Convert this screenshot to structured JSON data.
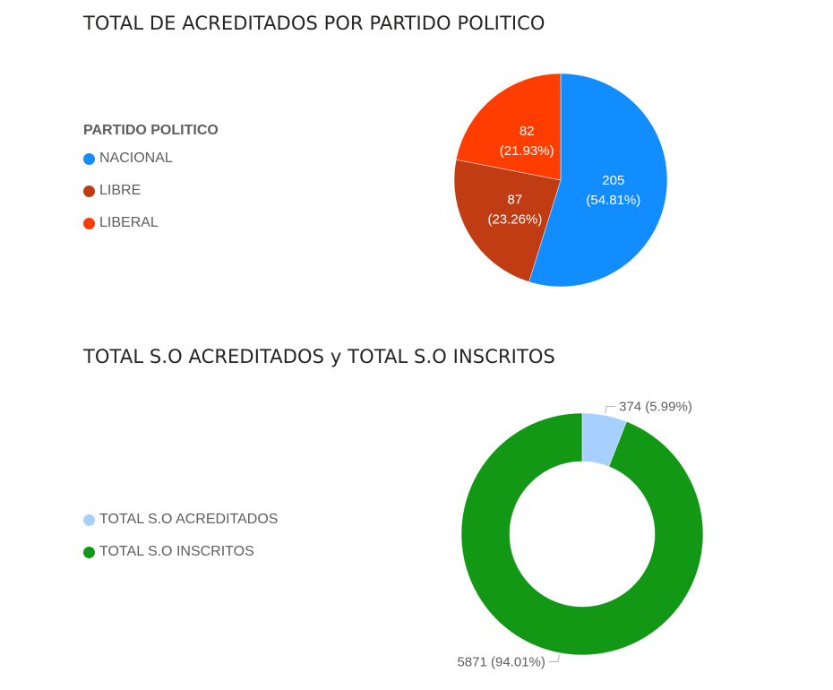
{
  "chart_data": [
    {
      "type": "pie",
      "title": "TOTAL DE ACREDITADOS POR PARTIDO POLITICO",
      "legend_title": "PARTIDO POLITICO",
      "legend_position": "left",
      "categories": [
        "NACIONAL",
        "LIBRE",
        "LIBERAL"
      ],
      "values": [
        205,
        87,
        82
      ],
      "percent_labels": [
        "54.81%",
        "23.26%",
        "21.93%"
      ],
      "colors": [
        "#118DFF",
        "#C23C13",
        "#FF3D00"
      ]
    },
    {
      "type": "pie",
      "subtype": "donut",
      "title": "TOTAL S.O ACREDITADOS y TOTAL S.O INSCRITOS",
      "legend_position": "left",
      "categories": [
        "TOTAL S.O ACREDITADOS",
        "TOTAL S.O INSCRITOS"
      ],
      "values": [
        374,
        5871
      ],
      "percent_labels": [
        "5.99%",
        "94.01%"
      ],
      "colors": [
        "#A6D0FF",
        "#129815"
      ]
    }
  ]
}
